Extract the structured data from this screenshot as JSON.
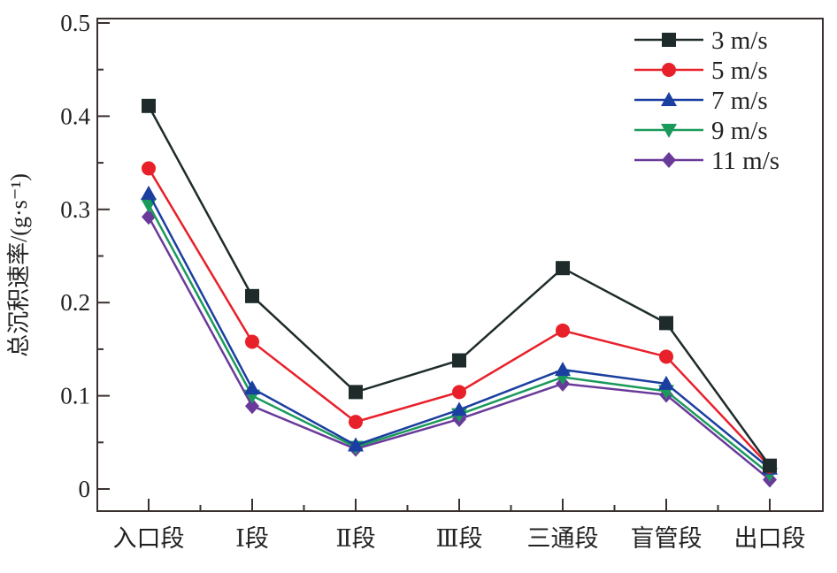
{
  "chart_data": {
    "type": "line",
    "title": "",
    "xlabel": "",
    "ylabel": "总沉积速率/(g·s⁻¹)",
    "categories": [
      "入口段",
      "Ⅰ段",
      "Ⅱ段",
      "Ⅲ段",
      "三通段",
      "盲管段",
      "出口段"
    ],
    "ylim": [
      0,
      0.5
    ],
    "yticks": [
      0,
      0.1,
      0.2,
      0.3,
      0.4,
      0.5
    ],
    "ytick_labels": [
      "0",
      "0.1",
      "0.2",
      "0.3",
      "0.4",
      "0.5"
    ],
    "grid": false,
    "legend_position": "top-right",
    "series": [
      {
        "name": "3 m/s",
        "color": "#1f2b2b",
        "marker": "square",
        "values": [
          0.411,
          0.207,
          0.104,
          0.138,
          0.237,
          0.178,
          0.025
        ]
      },
      {
        "name": "5 m/s",
        "color": "#e8202a",
        "marker": "circle",
        "values": [
          0.344,
          0.158,
          0.072,
          0.104,
          0.17,
          0.142,
          0.024
        ]
      },
      {
        "name": "7 m/s",
        "color": "#1b3fa0",
        "marker": "triangle-up",
        "values": [
          0.317,
          0.108,
          0.047,
          0.085,
          0.128,
          0.113,
          0.022
        ]
      },
      {
        "name": "9 m/s",
        "color": "#1a9a5a",
        "marker": "triangle-down",
        "values": [
          0.305,
          0.1,
          0.045,
          0.08,
          0.12,
          0.105,
          0.016
        ]
      },
      {
        "name": "11 m/s",
        "color": "#6a3a9a",
        "marker": "diamond",
        "values": [
          0.292,
          0.089,
          0.043,
          0.075,
          0.113,
          0.101,
          0.01
        ]
      }
    ]
  }
}
